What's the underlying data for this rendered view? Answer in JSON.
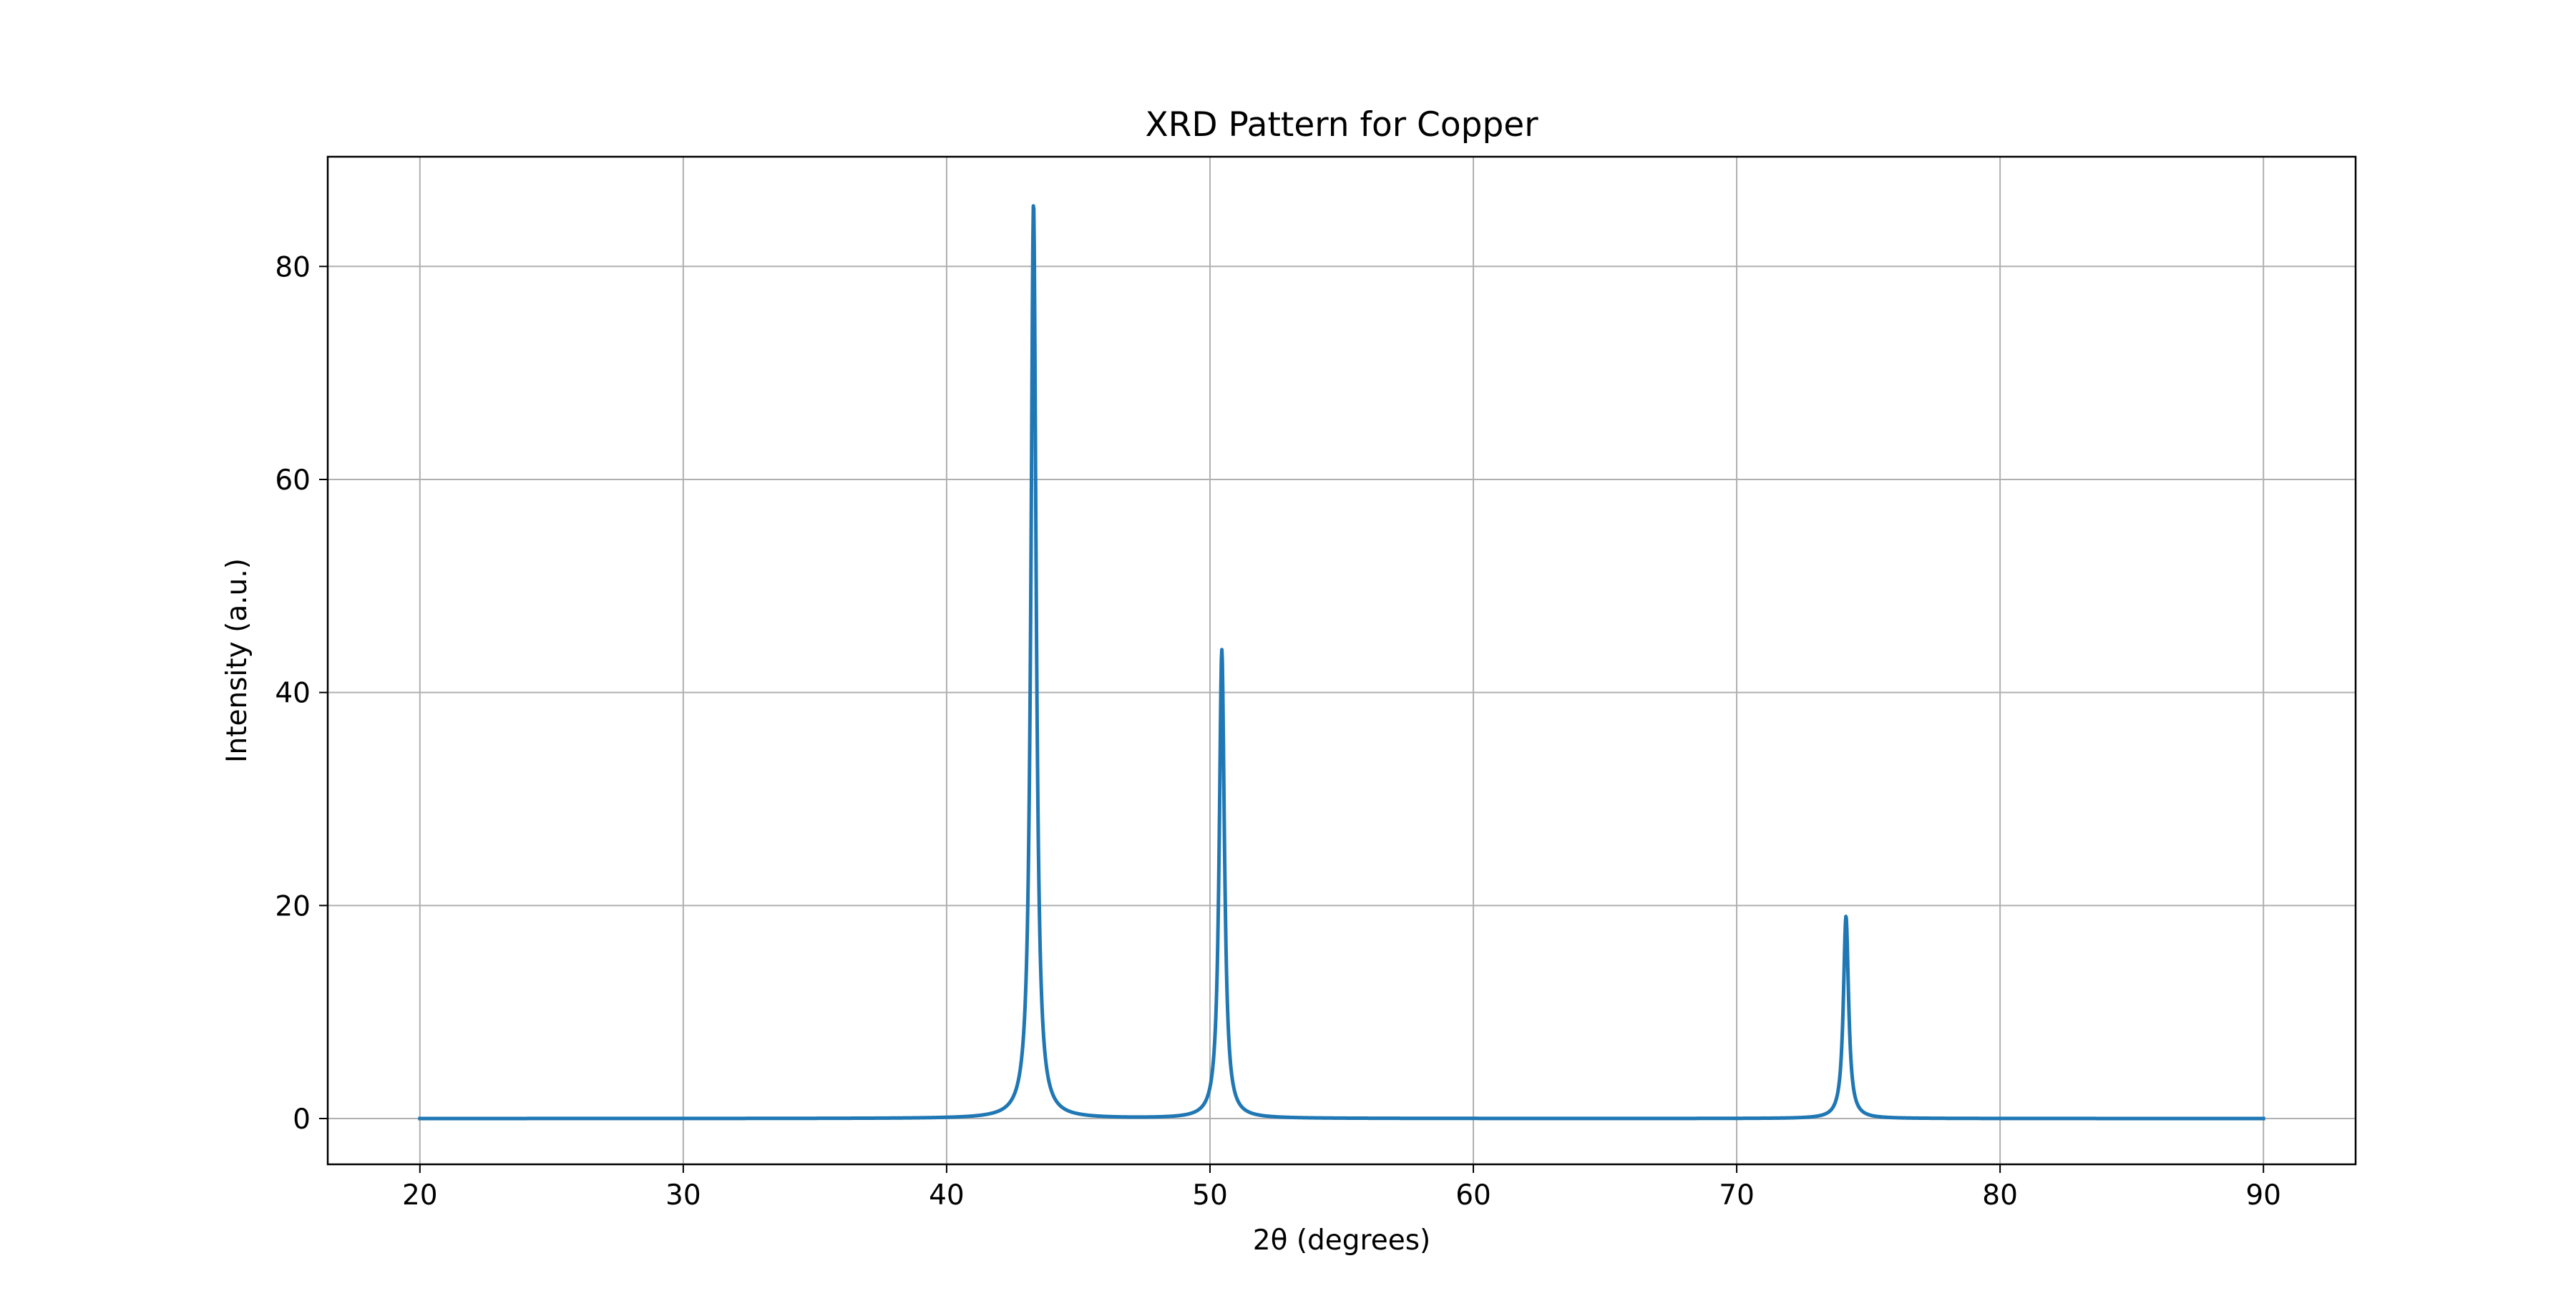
{
  "chart_data": {
    "type": "line",
    "title": "XRD Pattern for Copper",
    "xlabel": "2θ (degrees)",
    "ylabel": "Intensity (a.u.)",
    "xlim": [
      16.5,
      93.5
    ],
    "ylim": [
      -4.3,
      90.3
    ],
    "x_ticks": [
      20,
      30,
      40,
      50,
      60,
      70,
      80,
      90
    ],
    "y_ticks": [
      0,
      20,
      40,
      60,
      80
    ],
    "grid": true,
    "legend": "none",
    "line_color": "#1f77b4",
    "series": [
      {
        "x_range": [
          20,
          90
        ],
        "baseline": 0,
        "peaks": [
          {
            "position": 43.3,
            "intensity": 86
          },
          {
            "position": 50.45,
            "intensity": 44
          },
          {
            "position": 74.15,
            "intensity": 19
          }
        ]
      }
    ]
  }
}
